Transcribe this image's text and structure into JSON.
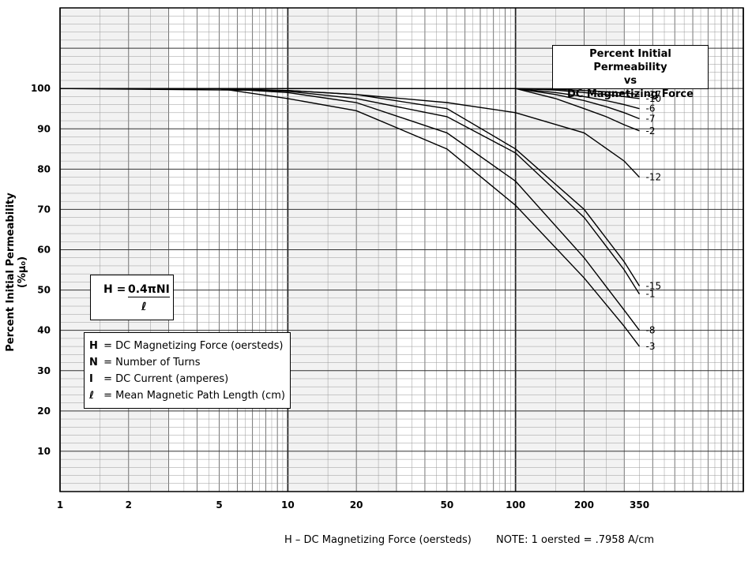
{
  "chart_data": {
    "type": "line",
    "title_lines": [
      "Percent Initial Permeability",
      "vs",
      "DC Magnetizing Force"
    ],
    "xlabel": "H – DC Magnetizing Force (oersteds)",
    "ylabel": "Percent Initial Permeability (%μ₀)",
    "note": "NOTE: 1 oersted = .7958 A/cm",
    "x_scale": "log",
    "xlim": [
      1,
      1000
    ],
    "ylim": [
      0,
      120
    ],
    "x_ticks": [
      1,
      2,
      5,
      10,
      20,
      50,
      100,
      200,
      350
    ],
    "y_ticks": [
      10,
      20,
      30,
      40,
      50,
      60,
      70,
      80,
      90,
      100
    ],
    "grid": true,
    "formula": {
      "lhs": "H =",
      "numerator": "0.4πNI",
      "denominator": "ℓ"
    },
    "definitions": [
      {
        "symbol": "H",
        "text": "= DC Magnetizing Force (oersteds)"
      },
      {
        "symbol": "N",
        "text": "= Number of Turns"
      },
      {
        "symbol": "I",
        "text": "= DC Current (amperes)"
      },
      {
        "symbol": "ℓ",
        "text": "= Mean Magnetic Path Length (cm)"
      }
    ],
    "series": [
      {
        "name": "-17",
        "x": [
          1,
          100,
          150,
          200,
          250,
          300,
          350
        ],
        "y": [
          100,
          100,
          99.8,
          99.5,
          99.2,
          98.9,
          98.5
        ]
      },
      {
        "name": "-10",
        "x": [
          1,
          100,
          150,
          200,
          250,
          300,
          350
        ],
        "y": [
          100,
          100,
          99.6,
          99,
          98.5,
          98,
          97.5
        ]
      },
      {
        "name": "-6",
        "x": [
          1,
          100,
          150,
          200,
          250,
          300,
          350
        ],
        "y": [
          100,
          100,
          99,
          98,
          97,
          96,
          95
        ]
      },
      {
        "name": "-7",
        "x": [
          1,
          100,
          150,
          200,
          250,
          300,
          350
        ],
        "y": [
          100,
          100,
          98.5,
          97,
          95.5,
          94,
          92.5
        ]
      },
      {
        "name": "-2",
        "x": [
          1,
          100,
          150,
          200,
          250,
          300,
          350
        ],
        "y": [
          100,
          100,
          97.5,
          95,
          93,
          91,
          89.5
        ]
      },
      {
        "name": "-12",
        "x": [
          1,
          10,
          20,
          50,
          100,
          200,
          300,
          350
        ],
        "y": [
          100,
          99.5,
          98.5,
          96.5,
          94,
          89,
          82,
          78
        ]
      },
      {
        "name": "-15",
        "x": [
          1,
          5,
          10,
          20,
          50,
          100,
          200,
          300,
          350
        ],
        "y": [
          100,
          100,
          99.5,
          98.5,
          95,
          85,
          70,
          57,
          51
        ]
      },
      {
        "name": "-1",
        "x": [
          1,
          5,
          10,
          20,
          50,
          100,
          200,
          300,
          350
        ],
        "y": [
          100,
          100,
          99.3,
          97.5,
          93,
          84,
          68,
          55,
          49
        ]
      },
      {
        "name": "-8",
        "x": [
          1,
          5,
          10,
          20,
          50,
          100,
          200,
          300,
          350
        ],
        "y": [
          100,
          100,
          99,
          96.5,
          89,
          77,
          58,
          45,
          40
        ]
      },
      {
        "name": "-3",
        "x": [
          1,
          5,
          10,
          20,
          50,
          100,
          200,
          300,
          350
        ],
        "y": [
          100,
          100,
          97.5,
          94.5,
          85,
          71,
          53,
          41,
          36
        ]
      }
    ]
  }
}
